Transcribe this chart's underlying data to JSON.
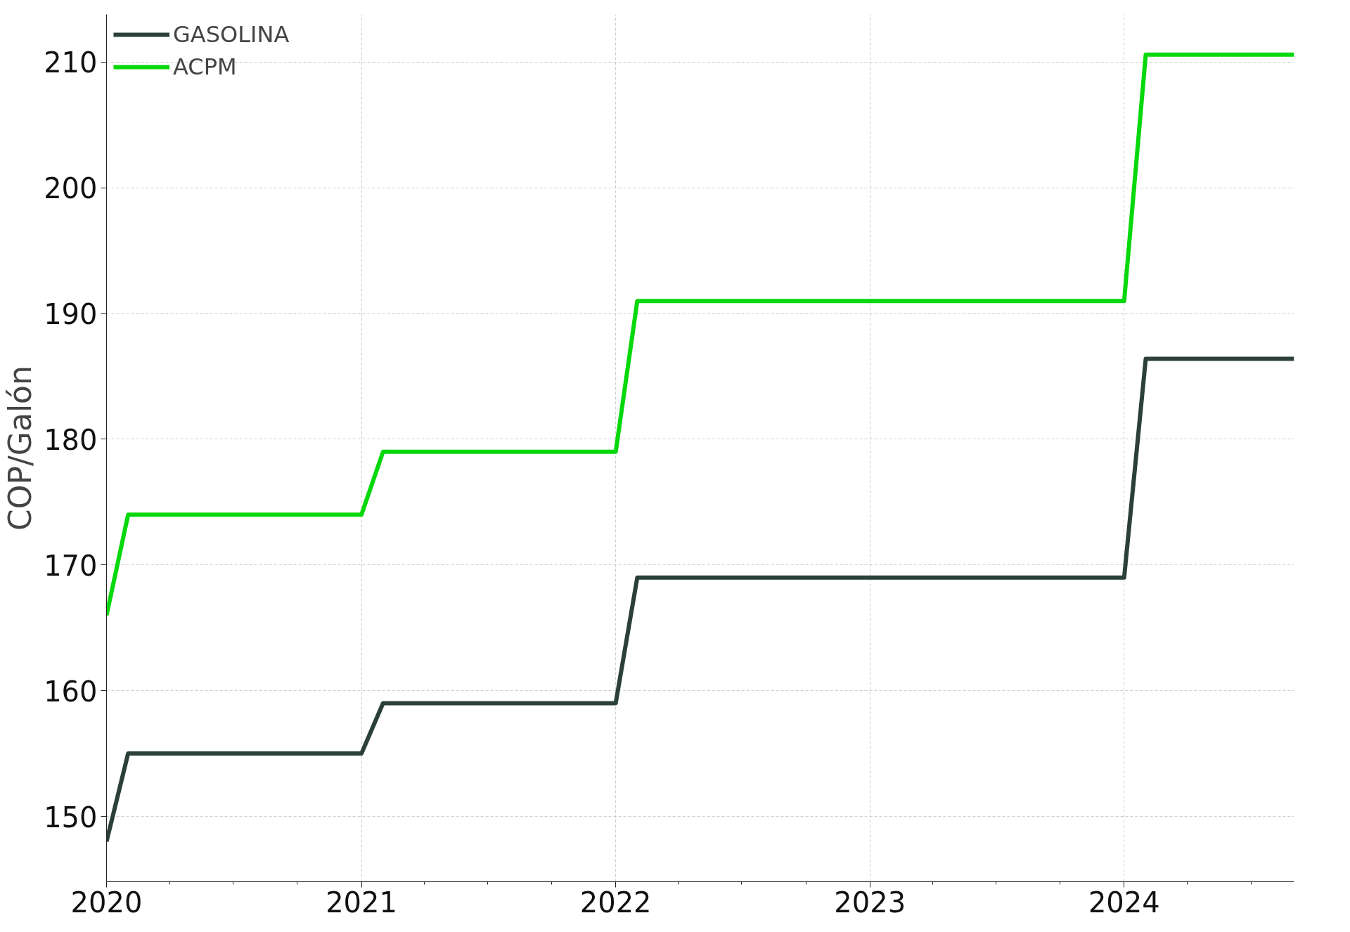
{
  "chart_data": {
    "type": "line",
    "ylabel": "COP/Galón",
    "x": [
      "2020-01",
      "2020-02",
      "2021-01",
      "2021-02",
      "2022-01",
      "2022-02",
      "2024-01",
      "2024-02",
      "2024-09"
    ],
    "series": [
      {
        "name": "GASOLINA",
        "color": "#2b4036",
        "values": [
          148,
          155,
          155,
          159,
          159,
          169,
          169,
          186.4,
          186.4
        ]
      },
      {
        "name": "ACPM",
        "color": "#06d80c",
        "values": [
          166,
          174,
          174,
          179,
          179,
          191,
          191,
          210.6,
          210.6
        ]
      }
    ],
    "xlim": [
      "2020-01",
      "2024-09"
    ],
    "xticks": [
      {
        "value": "2020-01",
        "label": "2020"
      },
      {
        "value": "2020-04",
        "label": null
      },
      {
        "value": "2020-07",
        "label": null
      },
      {
        "value": "2020-10",
        "label": null
      },
      {
        "value": "2021-01",
        "label": "2021"
      },
      {
        "value": "2021-04",
        "label": null
      },
      {
        "value": "2021-07",
        "label": null
      },
      {
        "value": "2021-10",
        "label": null
      },
      {
        "value": "2022-01",
        "label": "2022"
      },
      {
        "value": "2022-04",
        "label": null
      },
      {
        "value": "2022-07",
        "label": null
      },
      {
        "value": "2022-10",
        "label": null
      },
      {
        "value": "2023-01",
        "label": "2023"
      },
      {
        "value": "2023-04",
        "label": null
      },
      {
        "value": "2023-07",
        "label": null
      },
      {
        "value": "2023-10",
        "label": null
      },
      {
        "value": "2024-01",
        "label": "2024"
      },
      {
        "value": "2024-04",
        "label": null
      },
      {
        "value": "2024-07",
        "label": null
      }
    ],
    "ylim": [
      144.8,
      213.8
    ],
    "yticks": [
      150,
      160,
      170,
      180,
      190,
      200,
      210
    ],
    "grid": true,
    "legend": "top left",
    "line_style": "solid",
    "marker": "none"
  }
}
